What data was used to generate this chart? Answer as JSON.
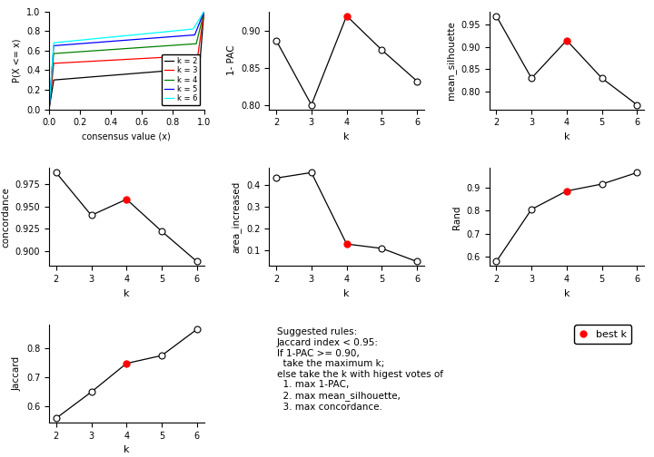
{
  "k_values": [
    2,
    3,
    4,
    5,
    6
  ],
  "pac_1minus": [
    0.887,
    0.8,
    0.92,
    0.874,
    0.832
  ],
  "mean_silhouette": [
    0.97,
    0.83,
    0.915,
    0.83,
    0.77
  ],
  "concordance": [
    0.988,
    0.94,
    0.958,
    0.922,
    0.888
  ],
  "area_increased": [
    0.43,
    0.455,
    0.13,
    0.11,
    0.05
  ],
  "rand": [
    0.578,
    0.805,
    0.885,
    0.915,
    0.965
  ],
  "jaccard": [
    0.56,
    0.65,
    0.748,
    0.775,
    0.865
  ],
  "best_k": 4,
  "legend_text": [
    "k = 2",
    "k = 3",
    "k = 4",
    "k = 5",
    "k = 6"
  ],
  "line_colors": [
    "black",
    "red",
    "green",
    "blue",
    "cyan"
  ],
  "best_k_color": "#FF0000",
  "text_block": "Suggested rules:\nJaccard index < 0.95:\nIf 1-PAC >= 0.90,\n  take the maximum k;\nelse take the k with higest votes of\n  1. max 1-PAC,\n  2. max mean_silhouette,\n  3. max concordance.",
  "best_k_label": "best k"
}
